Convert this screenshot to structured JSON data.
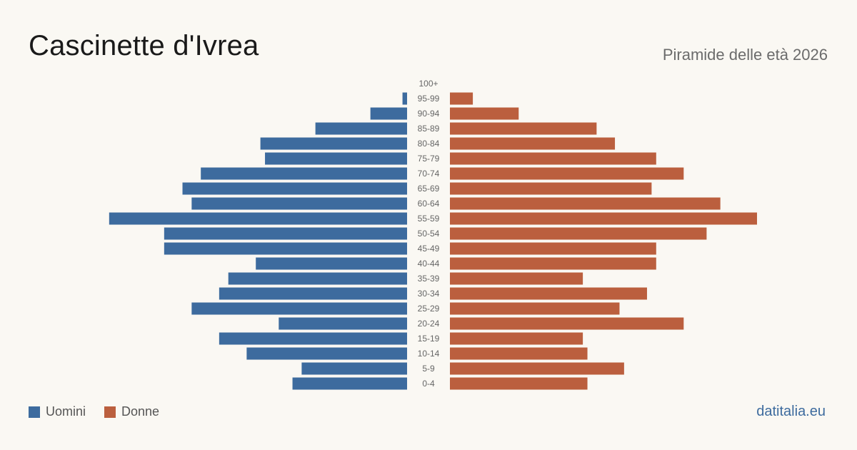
{
  "title": "Cascinette d'Ivrea",
  "subtitle": "Piramide delle età 2026",
  "brand": "datitalia.eu",
  "colors": {
    "male": "#3d6b9e",
    "female": "#bb5f3e",
    "background": "#faf8f3"
  },
  "legend": {
    "male_label": "Uomini",
    "female_label": "Donne"
  },
  "chart_data": {
    "type": "bar",
    "orientation": "horizontal-population-pyramid",
    "categories": [
      "100+",
      "95-99",
      "90-94",
      "85-89",
      "80-84",
      "75-79",
      "70-74",
      "65-69",
      "60-64",
      "55-59",
      "50-54",
      "45-49",
      "40-44",
      "35-39",
      "30-34",
      "25-29",
      "20-24",
      "15-19",
      "10-14",
      "5-9",
      "0-4"
    ],
    "series": [
      {
        "name": "Uomini",
        "values": [
          0,
          1,
          8,
          20,
          32,
          31,
          45,
          49,
          47,
          65,
          53,
          53,
          33,
          39,
          41,
          47,
          28,
          41,
          35,
          23,
          25
        ]
      },
      {
        "name": "Donne",
        "values": [
          0,
          5,
          15,
          32,
          36,
          45,
          51,
          44,
          59,
          67,
          56,
          45,
          45,
          29,
          43,
          37,
          51,
          29,
          30,
          38,
          30
        ]
      }
    ],
    "xlim": [
      0,
      67
    ],
    "grid": false,
    "legend_position": "bottom-left"
  }
}
